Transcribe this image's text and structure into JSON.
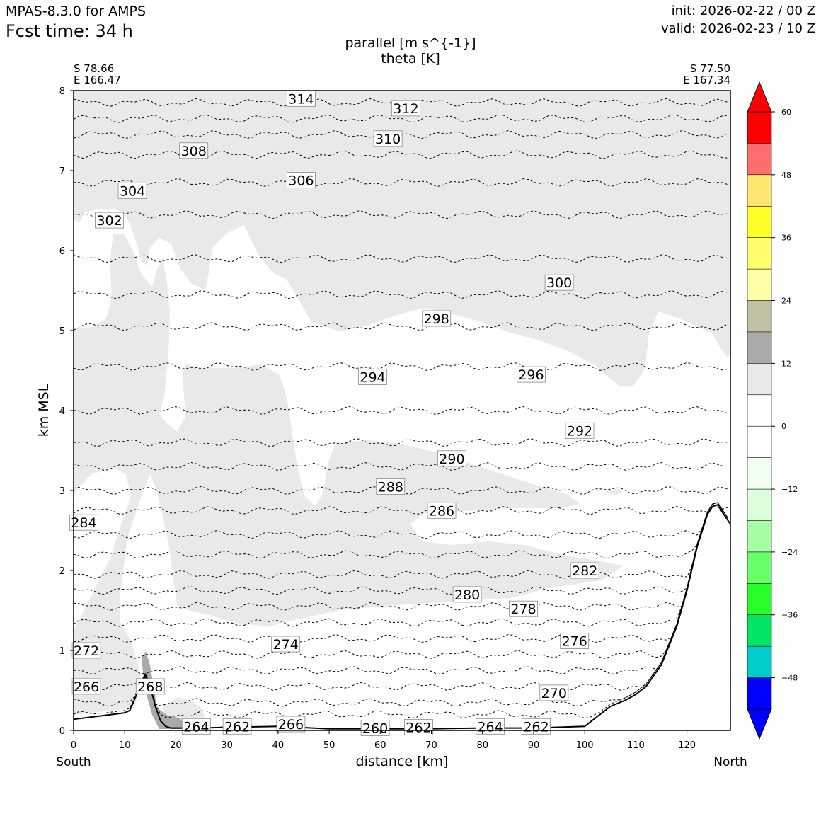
{
  "header": {
    "model": "MPAS-8.3.0 for AMPS",
    "fcst_time": "Fcst time:   34 h",
    "init": "init: 2026-02-22 / 00 Z",
    "valid": "valid: 2026-02-23 / 10 Z"
  },
  "endpoints": {
    "start_lat": "S 78.66",
    "start_lon": "E 166.47",
    "end_lat": "S 77.50",
    "end_lon": "E 167.34",
    "left_dir": "South",
    "right_dir": "North"
  },
  "chart_data": {
    "type": "cross-section contour",
    "title_lines": [
      "parallel [m s^{-1}]",
      "theta [K]"
    ],
    "xlabel": "distance [km]",
    "ylabel": "km MSL",
    "xlim": [
      0,
      128.5
    ],
    "ylim": [
      0,
      8
    ],
    "xticks": [
      0,
      10,
      20,
      30,
      40,
      50,
      60,
      70,
      80,
      90,
      100,
      110,
      120
    ],
    "yticks": [
      0,
      1,
      2,
      3,
      4,
      5,
      6,
      7,
      8
    ],
    "terrain": {
      "x": [
        0,
        5,
        10,
        11,
        13,
        14,
        15,
        16,
        17,
        18,
        19,
        20,
        25,
        30,
        40,
        50,
        60,
        70,
        80,
        90,
        100,
        102,
        105,
        108,
        110,
        112,
        115,
        118,
        120,
        122,
        124,
        125,
        126,
        127,
        128.5
      ],
      "z": [
        0.14,
        0.18,
        0.22,
        0.25,
        0.55,
        0.68,
        0.55,
        0.3,
        0.12,
        0.05,
        0.03,
        0.03,
        0.03,
        0.04,
        0.05,
        0.02,
        0.02,
        0.02,
        0.03,
        0.03,
        0.05,
        0.15,
        0.3,
        0.38,
        0.45,
        0.55,
        0.82,
        1.3,
        1.75,
        2.3,
        2.7,
        2.8,
        2.82,
        2.72,
        2.58
      ]
    },
    "theta_labels": [
      {
        "x": 44.5,
        "z": 7.9,
        "text": "314"
      },
      {
        "x": 65,
        "z": 7.78,
        "text": "312"
      },
      {
        "x": 61.5,
        "z": 7.4,
        "text": "310"
      },
      {
        "x": 23.5,
        "z": 7.25,
        "text": "308"
      },
      {
        "x": 44.5,
        "z": 6.88,
        "text": "306"
      },
      {
        "x": 11.5,
        "z": 6.75,
        "text": "304"
      },
      {
        "x": 7,
        "z": 6.38,
        "text": "302"
      },
      {
        "x": 95,
        "z": 5.6,
        "text": "300"
      },
      {
        "x": 71,
        "z": 5.15,
        "text": "298"
      },
      {
        "x": 89.5,
        "z": 4.45,
        "text": "296"
      },
      {
        "x": 58.5,
        "z": 4.42,
        "text": "294"
      },
      {
        "x": 99,
        "z": 3.75,
        "text": "292"
      },
      {
        "x": 74,
        "z": 3.4,
        "text": "290"
      },
      {
        "x": 62,
        "z": 3.05,
        "text": "288"
      },
      {
        "x": 72,
        "z": 2.75,
        "text": "286"
      },
      {
        "x": 2,
        "z": 2.6,
        "text": "284"
      },
      {
        "x": 100,
        "z": 2.0,
        "text": "282"
      },
      {
        "x": 77,
        "z": 1.7,
        "text": "280"
      },
      {
        "x": 88,
        "z": 1.52,
        "text": "278"
      },
      {
        "x": 98,
        "z": 1.12,
        "text": "276"
      },
      {
        "x": 41.5,
        "z": 1.08,
        "text": "274"
      },
      {
        "x": 2.5,
        "z": 1.0,
        "text": "272"
      },
      {
        "x": 94,
        "z": 0.47,
        "text": "270"
      },
      {
        "x": 15,
        "z": 0.55,
        "text": "268"
      },
      {
        "x": 2.5,
        "z": 0.55,
        "text": "266"
      },
      {
        "x": 42.5,
        "z": 0.08,
        "text": "266"
      },
      {
        "x": 24,
        "z": 0.05,
        "text": "264"
      },
      {
        "x": 32,
        "z": 0.05,
        "text": "262"
      },
      {
        "x": 59,
        "z": 0.03,
        "text": "260"
      },
      {
        "x": 67.5,
        "z": 0.04,
        "text": "262"
      },
      {
        "x": 81.5,
        "z": 0.05,
        "text": "264"
      },
      {
        "x": 90.5,
        "z": 0.05,
        "text": "262"
      }
    ],
    "colorbar": {
      "levels": [
        -54,
        -48,
        -42,
        -36,
        -30,
        -24,
        -18,
        -12,
        -6,
        0,
        6,
        12,
        18,
        24,
        30,
        36,
        42,
        48,
        54,
        60
      ],
      "tick_values": [
        60,
        48,
        36,
        24,
        12,
        0,
        -12,
        -24,
        -36,
        -48
      ],
      "tick_labels": [
        "60",
        "48",
        "36",
        "24",
        "12",
        "0",
        "−12",
        "−24",
        "−36",
        "−48"
      ],
      "over_color": "#ff0000",
      "under_color": "#0000ff",
      "colors_top_to_bottom": [
        "#ff0000",
        "#ff6e6e",
        "#ffe66e",
        "#ffff28",
        "#ffff6e",
        "#ffffa6",
        "#c0c0a4",
        "#aaaaaa",
        "#e9e9e9",
        "#ffffff",
        "#ffffff",
        "#f1fff1",
        "#dcffdc",
        "#a6ffa6",
        "#68ff68",
        "#28ff28",
        "#00e664",
        "#00cccc",
        "#0000ff"
      ]
    }
  }
}
